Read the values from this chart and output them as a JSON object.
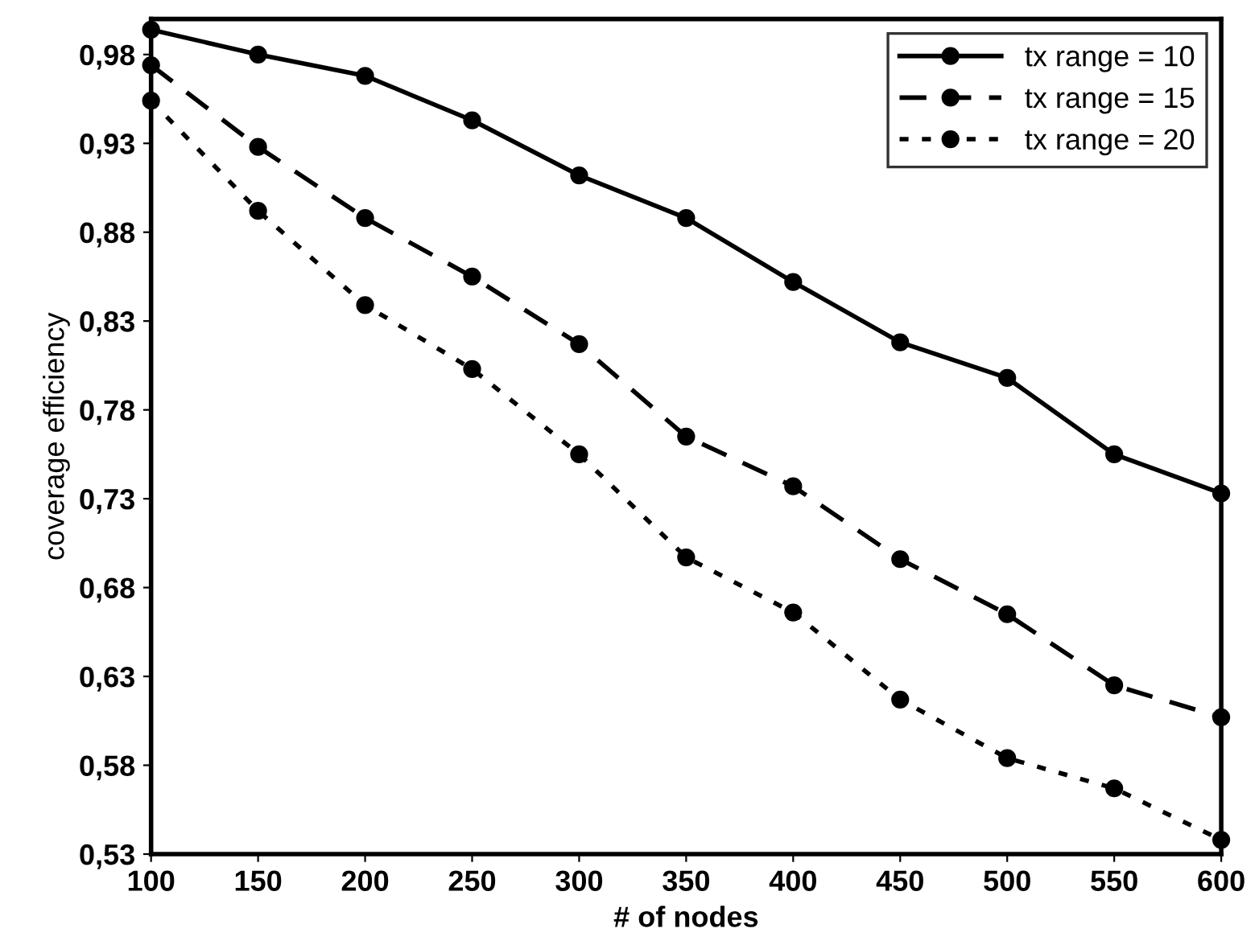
{
  "chart_data": {
    "type": "line",
    "xlabel": "# of nodes",
    "ylabel": "coverage efficiency",
    "x": [
      100,
      150,
      200,
      250,
      300,
      350,
      400,
      450,
      500,
      550,
      600
    ],
    "series": [
      {
        "name": "tx range = 10",
        "color": "#000000",
        "line_style": "solid",
        "values": [
          0.994,
          0.98,
          0.968,
          0.943,
          0.912,
          0.888,
          0.852,
          0.818,
          0.798,
          0.755,
          0.733
        ]
      },
      {
        "name": "tx range = 15",
        "color": "#000000",
        "line_style": "dashed",
        "values": [
          0.974,
          0.928,
          0.888,
          0.855,
          0.817,
          0.765,
          0.737,
          0.696,
          0.665,
          0.625,
          0.607
        ]
      },
      {
        "name": "tx range = 20",
        "color": "#000000",
        "line_style": "dotted",
        "values": [
          0.954,
          0.892,
          0.839,
          0.803,
          0.755,
          0.697,
          0.666,
          0.617,
          0.584,
          0.567,
          0.538
        ]
      }
    ],
    "marker": "circle",
    "legend": "top right",
    "grid": false,
    "xlim": [
      100,
      600
    ],
    "xticks": [
      100,
      150,
      200,
      250,
      300,
      350,
      400,
      450,
      500,
      550,
      600
    ],
    "ylim": [
      0.53,
      1.0
    ],
    "yticks": [
      {
        "value": 0.53,
        "label": "0,53"
      },
      {
        "value": 0.58,
        "label": "0,58"
      },
      {
        "value": 0.63,
        "label": "0,63"
      },
      {
        "value": 0.68,
        "label": "0,68"
      },
      {
        "value": 0.73,
        "label": "0,73"
      },
      {
        "value": 0.78,
        "label": "0,78"
      },
      {
        "value": 0.83,
        "label": "0,83"
      },
      {
        "value": 0.88,
        "label": "0,88"
      },
      {
        "value": 0.93,
        "label": "0,93"
      },
      {
        "value": 0.98,
        "label": "0,98"
      }
    ]
  }
}
